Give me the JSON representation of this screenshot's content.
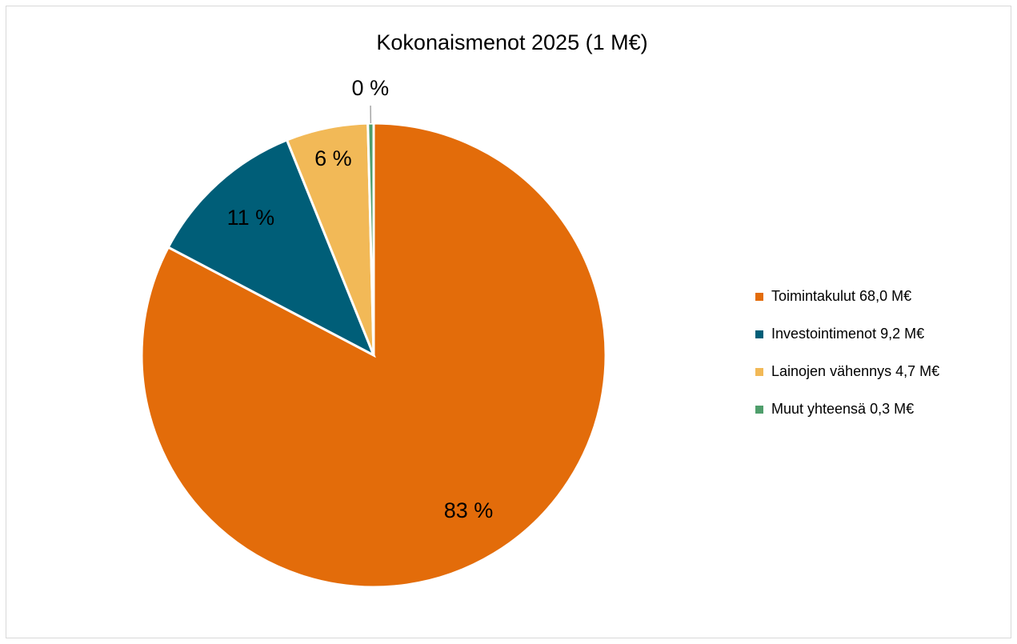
{
  "chart_data": {
    "type": "pie",
    "title": "Kokonaismenot 2025 (1 M€)",
    "categories": [
      "Toimintakulut 68,0 M€",
      "Investointimenot 9,2 M€",
      "Lainojen vähennys 4,7 M€",
      "Muut yhteensä 0,3 M€"
    ],
    "values": [
      82.7,
      11.2,
      5.7,
      0.4
    ],
    "value_labels": [
      "83 %",
      "11 %",
      "6 %",
      "0 %"
    ],
    "colors": [
      "#e36c0a",
      "#005e78",
      "#f2b957",
      "#4f9e6b"
    ],
    "legend": "right"
  }
}
